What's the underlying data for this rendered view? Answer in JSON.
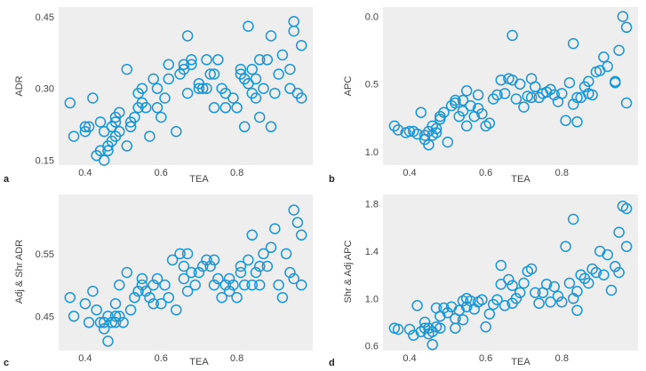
{
  "style": {
    "point_color": "#1a96d4",
    "panel_bg": "#eeeeee",
    "text_color": "#444444"
  },
  "chart_data": [
    {
      "panel": "a",
      "type": "scatter",
      "xlabel": "TEA",
      "ylabel": "ADR",
      "xlim": [
        0.33,
        1.0
      ],
      "ylim": [
        0.14,
        0.47
      ],
      "y_invert": false,
      "xticks": [
        0.4,
        0.6,
        0.8
      ],
      "xtick_labels": [
        "0.4",
        "0.6",
        "0.8"
      ],
      "yticks": [
        0.15,
        0.3,
        0.45
      ],
      "ytick_labels": [
        "0.15",
        "0.30",
        "0.45"
      ],
      "x": [
        0.36,
        0.37,
        0.4,
        0.4,
        0.41,
        0.42,
        0.43,
        0.44,
        0.44,
        0.45,
        0.45,
        0.46,
        0.46,
        0.47,
        0.47,
        0.48,
        0.48,
        0.48,
        0.49,
        0.49,
        0.51,
        0.51,
        0.52,
        0.52,
        0.53,
        0.54,
        0.54,
        0.55,
        0.55,
        0.56,
        0.57,
        0.58,
        0.59,
        0.59,
        0.6,
        0.61,
        0.62,
        0.62,
        0.64,
        0.65,
        0.66,
        0.66,
        0.67,
        0.67,
        0.68,
        0.68,
        0.7,
        0.7,
        0.71,
        0.72,
        0.72,
        0.73,
        0.74,
        0.74,
        0.75,
        0.76,
        0.77,
        0.77,
        0.79,
        0.8,
        0.81,
        0.81,
        0.82,
        0.82,
        0.83,
        0.83,
        0.84,
        0.84,
        0.85,
        0.85,
        0.86,
        0.86,
        0.87,
        0.88,
        0.89,
        0.89,
        0.9,
        0.91,
        0.92,
        0.94,
        0.94,
        0.95,
        0.95,
        0.96,
        0.97,
        0.97
      ],
      "y": [
        0.27,
        0.2,
        0.22,
        0.21,
        0.22,
        0.28,
        0.16,
        0.23,
        0.17,
        0.21,
        0.15,
        0.18,
        0.17,
        0.19,
        0.22,
        0.2,
        0.24,
        0.23,
        0.25,
        0.21,
        0.18,
        0.34,
        0.23,
        0.22,
        0.24,
        0.26,
        0.29,
        0.27,
        0.3,
        0.26,
        0.2,
        0.32,
        0.26,
        0.3,
        0.24,
        0.28,
        0.32,
        0.35,
        0.21,
        0.33,
        0.35,
        0.34,
        0.29,
        0.41,
        0.36,
        0.35,
        0.31,
        0.3,
        0.3,
        0.36,
        0.3,
        0.33,
        0.26,
        0.33,
        0.36,
        0.3,
        0.29,
        0.26,
        0.28,
        0.26,
        0.34,
        0.33,
        0.32,
        0.22,
        0.43,
        0.31,
        0.34,
        0.29,
        0.32,
        0.28,
        0.36,
        0.24,
        0.3,
        0.36,
        0.41,
        0.22,
        0.29,
        0.33,
        0.37,
        0.34,
        0.3,
        0.42,
        0.44,
        0.29,
        0.28,
        0.39
      ]
    },
    {
      "panel": "b",
      "type": "scatter",
      "xlabel": "TEA",
      "ylabel": "APC",
      "xlim": [
        0.33,
        1.0
      ],
      "ylim": [
        -0.07,
        1.1
      ],
      "y_invert": true,
      "xticks": [
        0.4,
        0.6,
        0.8
      ],
      "xtick_labels": [
        "0.4",
        "0.6",
        "0.8"
      ],
      "yticks": [
        0.0,
        0.5,
        1.0
      ],
      "ytick_labels": [
        "0.0",
        "0.5",
        "1.0"
      ],
      "x": [
        0.36,
        0.37,
        0.39,
        0.4,
        0.41,
        0.42,
        0.43,
        0.44,
        0.44,
        0.45,
        0.45,
        0.46,
        0.46,
        0.47,
        0.47,
        0.48,
        0.48,
        0.49,
        0.5,
        0.51,
        0.52,
        0.52,
        0.53,
        0.54,
        0.54,
        0.55,
        0.55,
        0.56,
        0.57,
        0.58,
        0.58,
        0.59,
        0.6,
        0.61,
        0.62,
        0.63,
        0.64,
        0.65,
        0.66,
        0.67,
        0.67,
        0.68,
        0.69,
        0.7,
        0.71,
        0.72,
        0.72,
        0.73,
        0.74,
        0.75,
        0.76,
        0.77,
        0.78,
        0.79,
        0.8,
        0.81,
        0.82,
        0.83,
        0.83,
        0.84,
        0.84,
        0.85,
        0.86,
        0.87,
        0.87,
        0.88,
        0.89,
        0.9,
        0.91,
        0.92,
        0.94,
        0.94,
        0.95,
        0.96,
        0.97,
        0.97
      ],
      "y": [
        0.81,
        0.84,
        0.86,
        0.85,
        0.85,
        0.87,
        0.71,
        0.88,
        0.91,
        0.85,
        0.95,
        0.81,
        0.88,
        0.86,
        0.83,
        0.76,
        0.74,
        0.71,
        0.93,
        0.66,
        0.64,
        0.62,
        0.74,
        0.7,
        0.62,
        0.55,
        0.81,
        0.66,
        0.74,
        0.58,
        0.68,
        0.72,
        0.81,
        0.79,
        0.61,
        0.58,
        0.47,
        0.57,
        0.46,
        0.47,
        0.14,
        0.61,
        0.5,
        0.67,
        0.59,
        0.6,
        0.46,
        0.52,
        0.6,
        0.57,
        0.56,
        0.54,
        0.58,
        0.63,
        0.57,
        0.77,
        0.49,
        0.2,
        0.65,
        0.6,
        0.78,
        0.6,
        0.52,
        0.48,
        0.57,
        0.58,
        0.41,
        0.4,
        0.3,
        0.37,
        0.48,
        0.49,
        0.25,
        0.0,
        0.64,
        0.08
      ]
    },
    {
      "panel": "c",
      "type": "scatter",
      "xlabel": "TEA",
      "ylabel": "Adj & Shr ADR",
      "xlim": [
        0.33,
        1.0
      ],
      "ylim": [
        0.395,
        0.645
      ],
      "y_invert": false,
      "xticks": [
        0.4,
        0.6,
        0.8
      ],
      "xtick_labels": [
        "0.4",
        "0.6",
        "0.8"
      ],
      "yticks": [
        0.45,
        0.55
      ],
      "ytick_labels": [
        "0.45",
        "0.55"
      ],
      "x": [
        0.36,
        0.37,
        0.4,
        0.41,
        0.42,
        0.43,
        0.44,
        0.45,
        0.45,
        0.46,
        0.46,
        0.47,
        0.48,
        0.48,
        0.48,
        0.49,
        0.49,
        0.5,
        0.51,
        0.52,
        0.53,
        0.54,
        0.55,
        0.55,
        0.56,
        0.57,
        0.58,
        0.58,
        0.59,
        0.6,
        0.61,
        0.62,
        0.63,
        0.64,
        0.65,
        0.66,
        0.66,
        0.67,
        0.67,
        0.68,
        0.69,
        0.7,
        0.71,
        0.72,
        0.73,
        0.74,
        0.74,
        0.75,
        0.76,
        0.77,
        0.78,
        0.78,
        0.79,
        0.8,
        0.81,
        0.81,
        0.82,
        0.83,
        0.84,
        0.84,
        0.85,
        0.86,
        0.86,
        0.87,
        0.88,
        0.89,
        0.9,
        0.91,
        0.92,
        0.93,
        0.94,
        0.95,
        0.95,
        0.96,
        0.97,
        0.97
      ],
      "y": [
        0.48,
        0.45,
        0.47,
        0.44,
        0.49,
        0.46,
        0.44,
        0.44,
        0.43,
        0.45,
        0.41,
        0.44,
        0.45,
        0.47,
        0.44,
        0.5,
        0.45,
        0.44,
        0.52,
        0.46,
        0.48,
        0.49,
        0.5,
        0.51,
        0.49,
        0.48,
        0.47,
        0.5,
        0.51,
        0.47,
        0.5,
        0.48,
        0.54,
        0.46,
        0.55,
        0.53,
        0.51,
        0.55,
        0.49,
        0.52,
        0.5,
        0.52,
        0.53,
        0.54,
        0.53,
        0.5,
        0.54,
        0.51,
        0.48,
        0.5,
        0.51,
        0.49,
        0.5,
        0.48,
        0.52,
        0.53,
        0.5,
        0.54,
        0.58,
        0.5,
        0.52,
        0.53,
        0.5,
        0.55,
        0.53,
        0.56,
        0.59,
        0.5,
        0.48,
        0.55,
        0.52,
        0.51,
        0.62,
        0.6,
        0.5,
        0.58
      ]
    },
    {
      "panel": "d",
      "type": "scatter",
      "xlabel": "TEA",
      "ylabel": "Shr & Adj APC",
      "xlim": [
        0.33,
        1.0
      ],
      "ylim": [
        0.56,
        1.88
      ],
      "y_invert": false,
      "xticks": [
        0.4,
        0.6,
        0.8
      ],
      "xtick_labels": [
        "0.4",
        "0.6",
        "0.8"
      ],
      "yticks": [
        0.6,
        1.0,
        1.4,
        1.8
      ],
      "ytick_labels": [
        "0.6",
        "1.0",
        "1.4",
        "1.8"
      ],
      "x": [
        0.36,
        0.37,
        0.4,
        0.41,
        0.42,
        0.43,
        0.44,
        0.44,
        0.45,
        0.45,
        0.46,
        0.46,
        0.47,
        0.47,
        0.48,
        0.48,
        0.49,
        0.5,
        0.51,
        0.52,
        0.52,
        0.53,
        0.54,
        0.54,
        0.55,
        0.55,
        0.56,
        0.57,
        0.58,
        0.59,
        0.6,
        0.61,
        0.62,
        0.63,
        0.64,
        0.64,
        0.65,
        0.66,
        0.67,
        0.67,
        0.68,
        0.69,
        0.7,
        0.71,
        0.72,
        0.73,
        0.74,
        0.75,
        0.76,
        0.77,
        0.78,
        0.79,
        0.8,
        0.81,
        0.82,
        0.83,
        0.83,
        0.84,
        0.84,
        0.85,
        0.86,
        0.87,
        0.88,
        0.89,
        0.9,
        0.91,
        0.92,
        0.93,
        0.94,
        0.95,
        0.95,
        0.96,
        0.97,
        0.97
      ],
      "y": [
        0.75,
        0.74,
        0.74,
        0.69,
        0.94,
        0.72,
        0.75,
        0.8,
        0.7,
        0.75,
        0.61,
        0.72,
        0.76,
        0.92,
        0.85,
        0.75,
        0.92,
        0.88,
        0.93,
        0.83,
        0.75,
        0.9,
        0.82,
        0.98,
        1.0,
        0.93,
        0.98,
        0.91,
        0.97,
        0.99,
        0.76,
        0.87,
        0.95,
        0.99,
        1.28,
        1.12,
        0.94,
        1.16,
        1.11,
        0.96,
        1.0,
        1.05,
        1.13,
        1.23,
        1.25,
        1.05,
        0.96,
        1.05,
        1.12,
        0.97,
        1.1,
        1.02,
        0.97,
        1.44,
        1.13,
        1.67,
        1.0,
        1.06,
        0.9,
        1.2,
        1.17,
        1.13,
        1.25,
        1.22,
        1.4,
        1.2,
        1.37,
        1.07,
        1.27,
        1.56,
        1.22,
        1.78,
        1.44,
        1.76
      ]
    }
  ]
}
